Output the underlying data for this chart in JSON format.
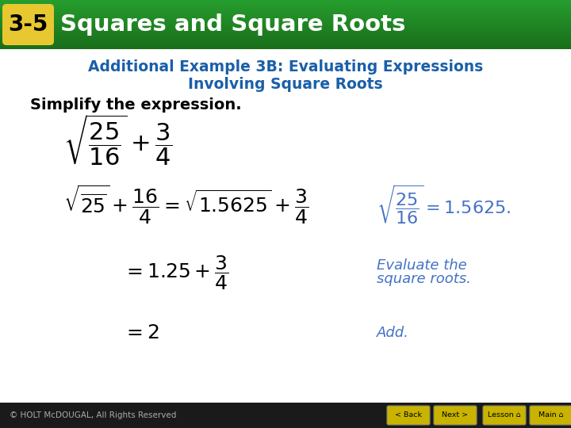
{
  "bg_color": "#ffffff",
  "header_bg_top": "#1a6e1a",
  "header_bg_bot": "#2e9e2e",
  "header_text": "Squares and Square Roots",
  "header_badge": "3-5",
  "header_badge_bg": "#e8c830",
  "header_text_color": "#ffffff",
  "subtitle_color": "#1a5fa8",
  "subtitle_line1": "Additional Example 3B: Evaluating Expressions",
  "subtitle_line2": "Involving Square Roots",
  "body_text_color": "#000000",
  "simplify_text": "Simplify the expression.",
  "note_color": "#4472c4",
  "footer_bg": "#1a1a1a",
  "footer_text": "© HOLT McDOUGAL, All Rights Reserved",
  "footer_text_color": "#aaaaaa",
  "button_bg": "#c8b400",
  "button_text_color": "#000000",
  "button_labels": [
    "< Back",
    "Next >",
    "Lesson",
    "Main"
  ]
}
